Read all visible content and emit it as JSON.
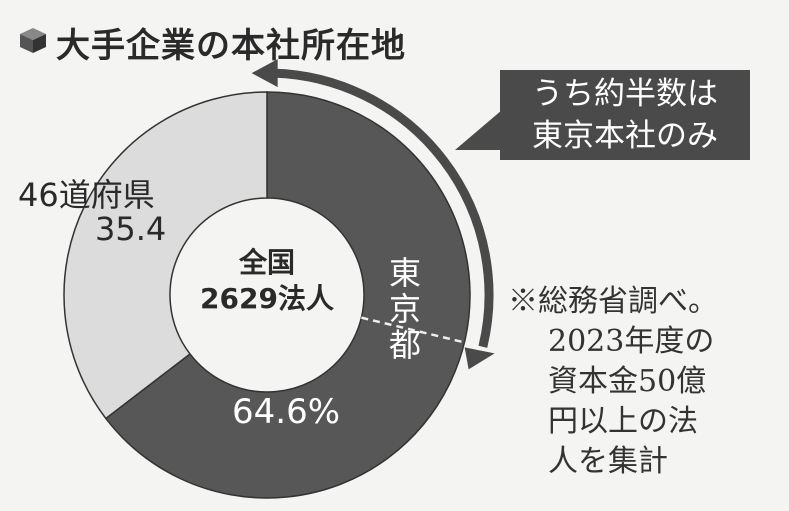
{
  "title": "大手企業の本社所在地",
  "callout": [
    "うち約半数は",
    "東京本社のみ"
  ],
  "note": [
    "※総務省調べ。",
    "2023年度の",
    "資本金50億",
    "円以上の法",
    "人を集計"
  ],
  "colors": {
    "tokyo": "#575757",
    "other": "#dcdcdc",
    "callout_bg": "#4a4a4a"
  },
  "chart_data": {
    "type": "pie",
    "donut": true,
    "center_label": [
      "全国",
      "2629法人"
    ],
    "slices": [
      {
        "label": "東京都",
        "value": 64.6,
        "value_label": "64.6%",
        "color": "#575757"
      },
      {
        "label": "46道府県",
        "value": 35.4,
        "value_label": "35.4",
        "color": "#dcdcdc"
      }
    ],
    "annotation": "うち約半数は東京本社のみ"
  }
}
